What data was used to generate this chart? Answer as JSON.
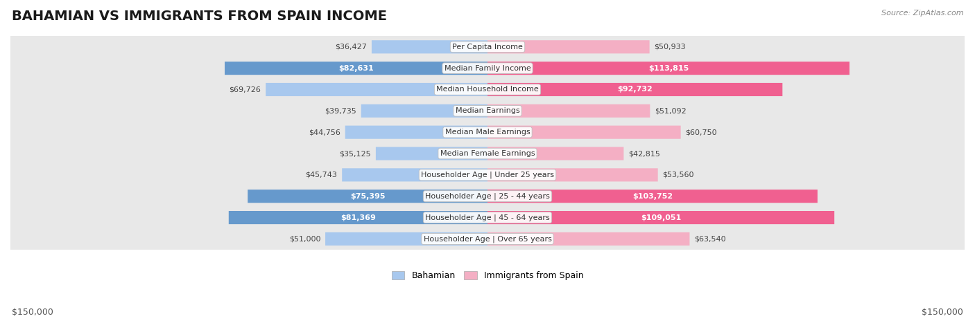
{
  "title": "BAHAMIAN VS IMMIGRANTS FROM SPAIN INCOME",
  "source": "Source: ZipAtlas.com",
  "categories": [
    "Per Capita Income",
    "Median Family Income",
    "Median Household Income",
    "Median Earnings",
    "Median Male Earnings",
    "Median Female Earnings",
    "Householder Age | Under 25 years",
    "Householder Age | 25 - 44 years",
    "Householder Age | 45 - 64 years",
    "Householder Age | Over 65 years"
  ],
  "bahamian_values": [
    36427,
    82631,
    69726,
    39735,
    44756,
    35125,
    45743,
    75395,
    81369,
    51000
  ],
  "spain_values": [
    50933,
    113815,
    92732,
    51092,
    60750,
    42815,
    53560,
    103752,
    109051,
    63540
  ],
  "bahamian_color_light": "#a8c8ee",
  "bahamian_color_dark": "#6699cc",
  "spain_color_light": "#f4afc4",
  "spain_color_dark": "#f06090",
  "max_value": 150000,
  "threshold_dark_label": 70000,
  "background_color": "#ffffff",
  "legend_bahamian": "Bahamian",
  "legend_spain": "Immigrants from Spain",
  "bottom_axis_label_left": "$150,000",
  "bottom_axis_label_right": "$150,000",
  "title_fontsize": 14,
  "source_fontsize": 8,
  "bar_label_fontsize": 8,
  "category_fontsize": 8
}
